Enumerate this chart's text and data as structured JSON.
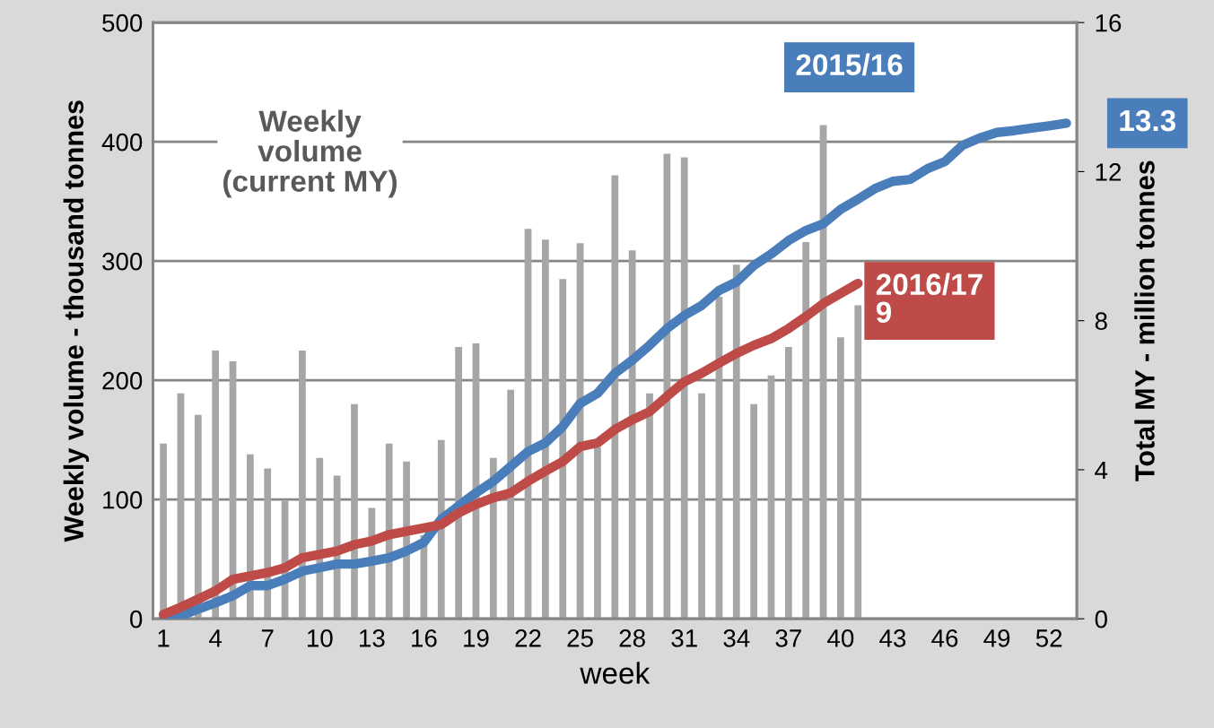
{
  "chart_data": {
    "type": "bar",
    "xlabel": "week",
    "ylabel": "Weekly volume - thousand tonnes",
    "y2label": "Total MY - million tonnes",
    "categories": [
      "1",
      null,
      null,
      "4",
      null,
      null,
      "7",
      null,
      null,
      "10",
      null,
      null,
      "13",
      null,
      null,
      "16",
      null,
      null,
      "19",
      null,
      null,
      "22",
      null,
      null,
      "25",
      null,
      null,
      "28",
      null,
      null,
      "31",
      null,
      null,
      "34",
      null,
      null,
      "37",
      null,
      null,
      "40",
      null,
      null,
      "43",
      null,
      null,
      "46",
      null,
      null,
      "49",
      null,
      null,
      "52",
      null
    ],
    "ylim": [
      0,
      500
    ],
    "yticks": [
      0,
      100,
      200,
      300,
      400,
      500
    ],
    "y2lim": [
      0,
      16
    ],
    "y2ticks": [
      0,
      4,
      8,
      12,
      16
    ],
    "grid": "y",
    "legend": false,
    "annotations": [
      "Weekly volume (current MY)"
    ],
    "series": [
      {
        "color": "#a6a6a6",
        "values": [
          147,
          189,
          171,
          225,
          216,
          138,
          126,
          99,
          225,
          135,
          120,
          180,
          93,
          147,
          132,
          70,
          150,
          228,
          231,
          135,
          192,
          327,
          318,
          285,
          315,
          144,
          372,
          309,
          189,
          390,
          387,
          189,
          270,
          297,
          180,
          204,
          228,
          316,
          414,
          236,
          263,
          null,
          null,
          null,
          null,
          null,
          null,
          null,
          null,
          null,
          null,
          null,
          null
        ]
      },
      {
        "type": "line",
        "axis": "y2",
        "name": "2015/16",
        "color": "#4a7ebb",
        "values": [
          0.0,
          0.08,
          0.26,
          0.43,
          0.62,
          0.89,
          0.89,
          1.06,
          1.28,
          1.37,
          1.47,
          1.47,
          1.55,
          1.64,
          1.82,
          2.05,
          2.67,
          3.03,
          3.38,
          3.69,
          4.09,
          4.49,
          4.72,
          5.16,
          5.78,
          6.05,
          6.59,
          6.94,
          7.34,
          7.79,
          8.14,
          8.41,
          8.81,
          9.04,
          9.48,
          9.79,
          10.15,
          10.42,
          10.6,
          10.99,
          11.26,
          11.55,
          11.74,
          11.79,
          12.08,
          12.27,
          12.7,
          12.9,
          13.05,
          13.1,
          13.17,
          13.23,
          13.3
        ],
        "value_labels": [
          null,
          null,
          null,
          null,
          null,
          null,
          null,
          null,
          null,
          null,
          null,
          null,
          null,
          null,
          null,
          null,
          null,
          null,
          null,
          null,
          null,
          null,
          null,
          null,
          null,
          null,
          null,
          null,
          null,
          null,
          null,
          null,
          null,
          null,
          null,
          null,
          null,
          null,
          null,
          null,
          null,
          null,
          null,
          null,
          null,
          null,
          null,
          null,
          null,
          null,
          null,
          null,
          "13.3"
        ]
      },
      {
        "type": "line",
        "axis": "y2",
        "name": "2016/17",
        "color": "#be4b48",
        "values": [
          0.12,
          0.31,
          0.53,
          0.75,
          1.06,
          1.15,
          1.24,
          1.37,
          1.64,
          1.73,
          1.82,
          1.99,
          2.09,
          2.26,
          2.35,
          2.44,
          2.53,
          2.84,
          3.07,
          3.25,
          3.38,
          3.69,
          3.96,
          4.22,
          4.62,
          4.72,
          5.08,
          5.34,
          5.56,
          5.97,
          6.36,
          6.59,
          6.86,
          7.12,
          7.34,
          7.52,
          7.79,
          8.11,
          8.46,
          8.73,
          9.0,
          null,
          null,
          null,
          null,
          null,
          null,
          null,
          null,
          null,
          null,
          null,
          null
        ],
        "value_labels": [
          null,
          null,
          null,
          null,
          null,
          null,
          null,
          null,
          null,
          null,
          null,
          null,
          null,
          null,
          null,
          null,
          null,
          null,
          null,
          null,
          null,
          null,
          null,
          null,
          null,
          null,
          null,
          null,
          null,
          null,
          null,
          null,
          null,
          null,
          null,
          null,
          null,
          null,
          null,
          null,
          "9",
          null,
          null,
          null,
          null,
          null,
          null,
          null,
          null,
          null,
          null,
          null,
          null
        ]
      }
    ]
  }
}
